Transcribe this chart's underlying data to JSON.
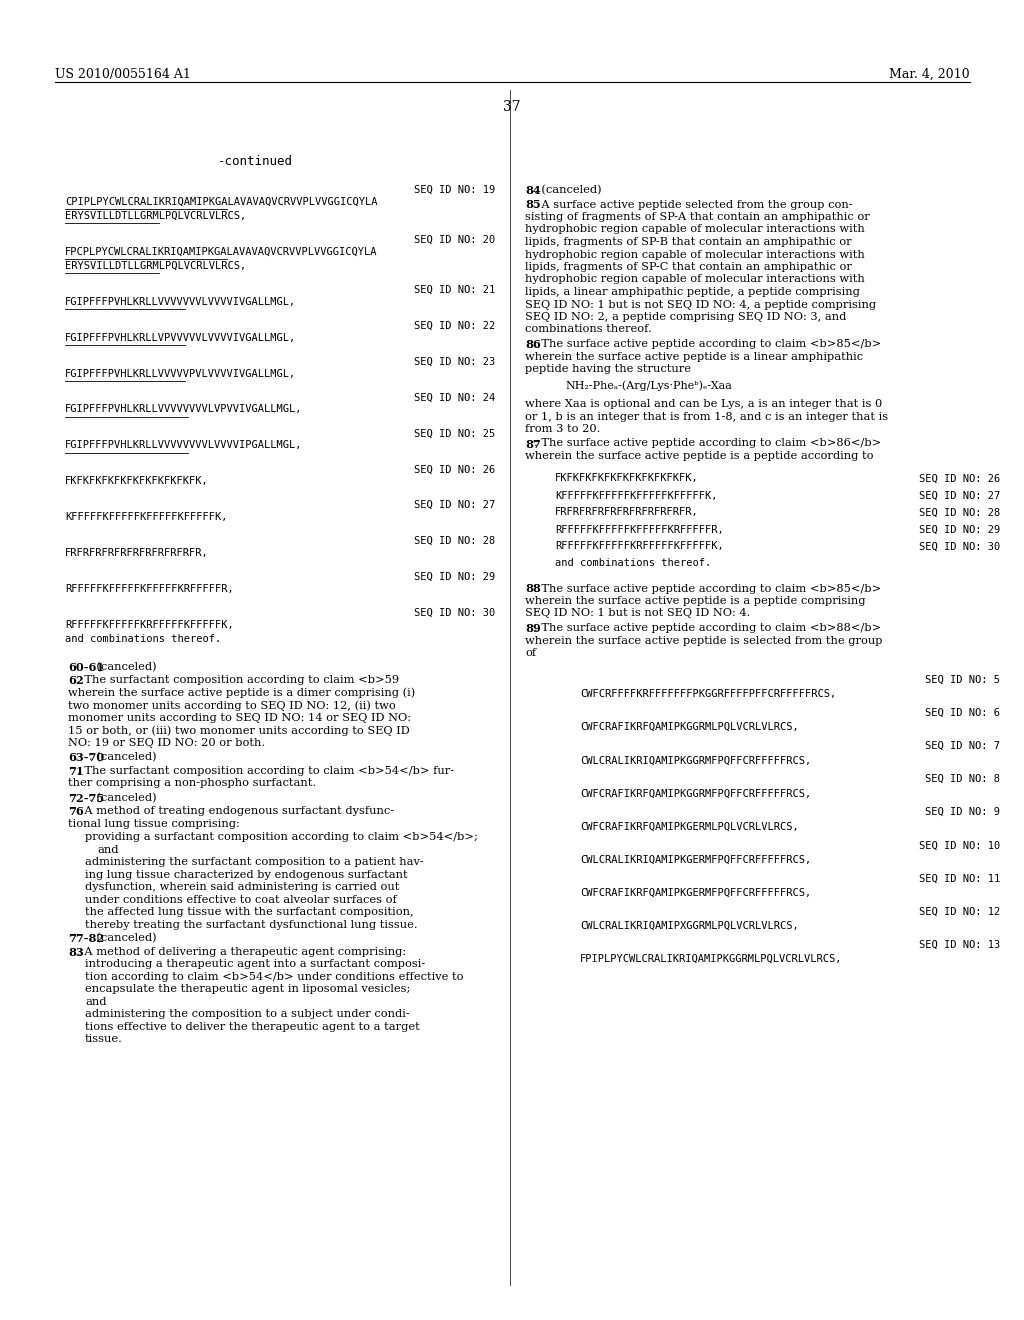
{
  "background_color": "#ffffff",
  "header_left": "US 2010/0055164 A1",
  "header_right": "Mar. 4, 2010",
  "page_number": "37",
  "continued_label": "-continued",
  "left_seqs": [
    {
      "id": "SEQ ID NO: 19",
      "lines": [
        "CPIPLPYCWLCRALIKRIQAMIPKGALAVAVAQVCRVVPLVVGGICQYLA",
        "ERYSVILLDTLLGRMLPQLVCRLVLRCS,"
      ],
      "underline": true
    },
    {
      "id": "SEQ ID NO: 20",
      "lines": [
        "FPCPLPYCWLCRALIKRIQAMIPKGALAVAVAQVCRVVPLVVGGICQYLA",
        "ERYSVILLDTLLGRMLPQLVCRLVLRCS,"
      ],
      "underline": true
    },
    {
      "id": "SEQ ID NO: 21",
      "lines": [
        "FGIPFFFPVHLKRLLVVVVVVVLVVVVIVGALLMGL,"
      ],
      "underline": true
    },
    {
      "id": "SEQ ID NO: 22",
      "lines": [
        "FGIPFFFPVHLKRLLVPVVVVVLVVVVIVGALLMGL,"
      ],
      "underline": true
    },
    {
      "id": "SEQ ID NO: 23",
      "lines": [
        "FGIPFFFPVHLKRLLVVVVVPVLVVVVIVGALLMGL,"
      ],
      "underline": true
    },
    {
      "id": "SEQ ID NO: 24",
      "lines": [
        "FGIPFFFPVHLKRLLVVVVVVVVLVPVVIVGALLMGL,"
      ],
      "underline": true
    },
    {
      "id": "SEQ ID NO: 25",
      "lines": [
        "FGIPFFFPVHLKRLLVVVVVVVVLVVVVIPGALLMGL,"
      ],
      "underline": true
    },
    {
      "id": "SEQ ID NO: 26",
      "lines": [
        "FKFKFKFKFKFKFKFKFKFKFK,"
      ],
      "underline": false
    },
    {
      "id": "SEQ ID NO: 27",
      "lines": [
        "KFFFFFKFFFFFKFFFFFKFFFFFK,"
      ],
      "underline": false
    },
    {
      "id": "SEQ ID NO: 28",
      "lines": [
        "FRFRFRFRFRFRFRFRFRFRFR,"
      ],
      "underline": false
    },
    {
      "id": "SEQ ID NO: 29",
      "lines": [
        "RFFFFFKFFFFFKFFFFFKRFFFFFR,"
      ],
      "underline": false
    },
    {
      "id": "SEQ ID NO: 30",
      "lines": [
        "RFFFFFKFFFFFKRFFFFFKFFFFFK,",
        "and combinations thereof."
      ],
      "underline": false
    }
  ],
  "right_seq_table1": [
    {
      "seq": "FKFKFKFKFKFKFKFKFKFKFK,",
      "id": "SEQ ID NO: 26"
    },
    {
      "seq": "KFFFFFKFFFFFKFFFFFKFFFFFK,",
      "id": "SEQ ID NO: 27"
    },
    {
      "seq": "FRFRFRFRFRFRFRFRFRFRFR,",
      "id": "SEQ ID NO: 28"
    },
    {
      "seq": "RFFFFFKFFFFFKFFFFFKRFFFFFR,",
      "id": "SEQ ID NO: 29"
    },
    {
      "seq": "RFFFFFKFFFFFKRFFFFFKFFFFFK,",
      "id": "SEQ ID NO: 30"
    },
    {
      "seq": "and combinations thereof.",
      "id": ""
    }
  ],
  "right_seq_table2": [
    {
      "seq": "CWFCRFFFFKRFFFFFFFPKGGRFFFFPFFCRFFFFFRCS,",
      "id": "SEQ ID NO: 5"
    },
    {
      "seq": "CWFCRAFIKRFQAMIPKGGRMLPQLVCRLVLRCS,",
      "id": "SEQ ID NO: 6"
    },
    {
      "seq": "CWLCRALIKRIQAMIPKGGRMFPQFFCRFFFFFRCS,",
      "id": "SEQ ID NO: 7"
    },
    {
      "seq": "CWFCRAFIKRFQAMIPKGGRMFPQFFCRFFFFFRCS,",
      "id": "SEQ ID NO: 8"
    },
    {
      "seq": "CWFCRAFIKRFQAMIPKGERMLPQLVCRLVLRCS,",
      "id": "SEQ ID NO: 9"
    },
    {
      "seq": "CWLCRALIKRIQAMIPKGERMFPQFFCRFFFFFRCS,",
      "id": "SEQ ID NO: 10"
    },
    {
      "seq": "CWFCRAFIKRFQAMIPKGERMFPQFFCRFFFFFRCS,",
      "id": "SEQ ID NO: 11"
    },
    {
      "seq": "CWLCRALIKRIQAMIPXGGRMLPQLVCRLVLRCS,",
      "id": "SEQ ID NO: 12"
    },
    {
      "seq": "FPIPLPYCWLCRALIKRIQAMIPKGGRMLPQLVCRLVLRCS,",
      "id": "SEQ ID NO: 13"
    }
  ]
}
